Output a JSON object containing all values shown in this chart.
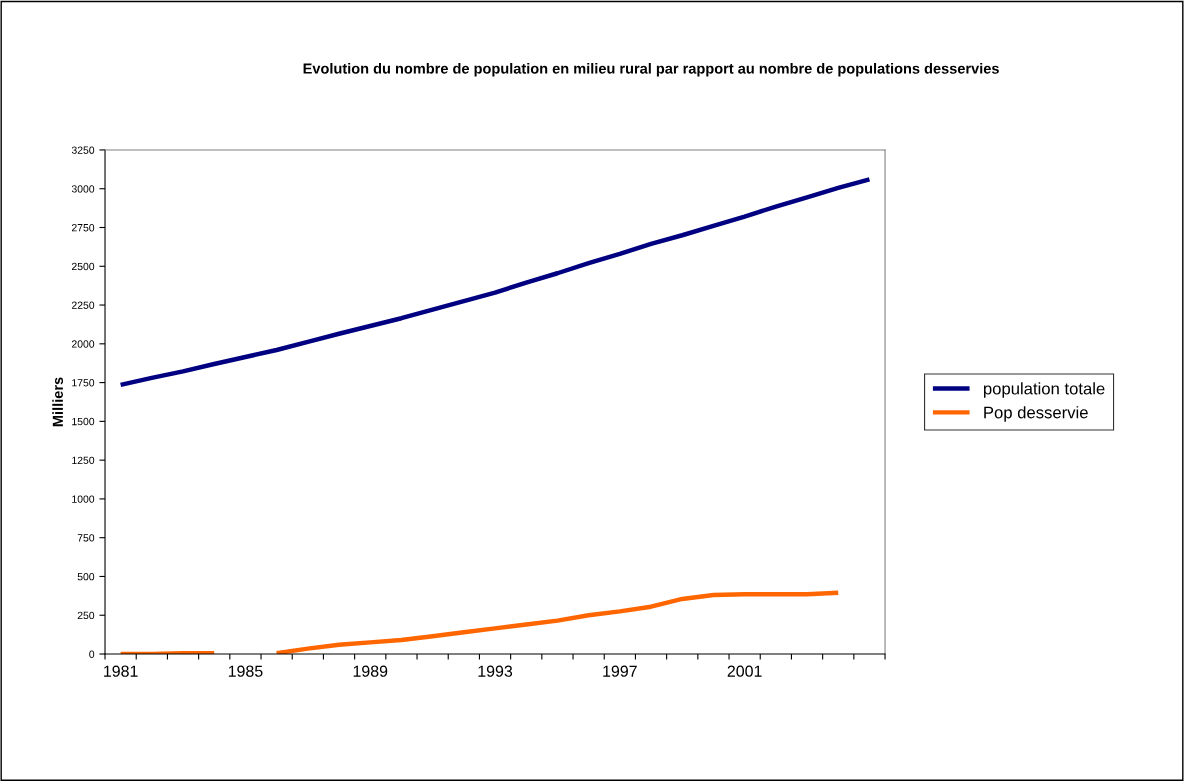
{
  "chart_data": {
    "type": "line",
    "title": "Evolution du nombre de population en milieu rural par rapport au nombre de populations desservies",
    "ylabel": "Milliers",
    "categories": [
      "1981",
      null,
      null,
      null,
      "1985",
      null,
      null,
      null,
      "1989",
      null,
      null,
      null,
      "1993",
      null,
      null,
      null,
      "1997",
      null,
      null,
      null,
      "2001",
      null,
      null,
      null,
      null
    ],
    "series": [
      {
        "name": "population totale",
        "color": "#000080",
        "values": [
          1735,
          1780,
          1822,
          1870,
          1915,
          1960,
          2012,
          2065,
          2115,
          2165,
          2220,
          2275,
          2330,
          2395,
          2455,
          2520,
          2580,
          2645,
          2700,
          2760,
          2820,
          2885,
          2945,
          3005,
          3060
        ]
      },
      {
        "name": "Pop desservie",
        "color": "#ff6600",
        "values": [
          0,
          0,
          5,
          5,
          null,
          5,
          35,
          60,
          75,
          90,
          115,
          140,
          165,
          190,
          215,
          250,
          275,
          305,
          355,
          380,
          385,
          385,
          385,
          395,
          null
        ]
      }
    ],
    "ylim": [
      0,
      3250
    ],
    "yticks": [
      0,
      250,
      500,
      750,
      1000,
      1250,
      1500,
      1750,
      2000,
      2250,
      2500,
      2750,
      3000,
      3250
    ],
    "grid": false,
    "legend": "right",
    "marker": "none",
    "line_style": "solid"
  }
}
